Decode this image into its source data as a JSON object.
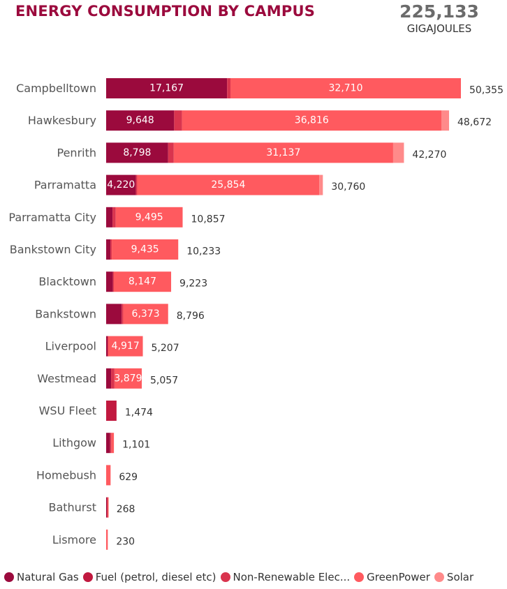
{
  "header": {
    "title": "ENERGY CONSUMPTION BY CAMPUS"
  },
  "kpi": {
    "value": "225,133",
    "label": "GIGAJOULES"
  },
  "chart_data": {
    "type": "bar",
    "orientation": "horizontal",
    "stacked": true,
    "categories": [
      "Campbelltown",
      "Hawkesbury",
      "Penrith",
      "Parramatta",
      "Parramatta City",
      "Bankstown City",
      "Blacktown",
      "Bankstown",
      "Liverpool",
      "Westmead",
      "WSU Fleet",
      "Lithgow",
      "Homebush",
      "Bathurst",
      "Lismore"
    ],
    "series": [
      {
        "name": "Natural Gas",
        "color": "#9b0a3d",
        "values": [
          17167,
          9648,
          8798,
          4220,
          900,
          600,
          950,
          2200,
          200,
          700,
          0,
          560,
          0,
          120,
          0
        ],
        "labels": [
          "17,167",
          "9,648",
          "8,798",
          "4,220",
          "",
          "",
          "",
          "",
          "",
          "",
          "",
          "",
          "",
          "",
          ""
        ]
      },
      {
        "name": "Fuel (petrol, diesel etc)",
        "color": "#c1193f",
        "values": [
          0,
          0,
          0,
          0,
          0,
          0,
          0,
          0,
          0,
          0,
          1474,
          0,
          0,
          0,
          0
        ],
        "labels": [
          "",
          "",
          "",
          "",
          "",
          "",
          "",
          "",
          "",
          "",
          "",
          "",
          "",
          "",
          ""
        ]
      },
      {
        "name": "Non-Renewable Elec...",
        "color": "#d9344e",
        "values": [
          478,
          1116,
          800,
          186,
          462,
          198,
          126,
          223,
          90,
          478,
          0,
          170,
          0,
          80,
          0
        ],
        "labels": [
          "",
          "",
          "",
          "",
          "",
          "",
          "",
          "",
          "",
          "",
          "",
          "",
          "",
          "",
          ""
        ]
      },
      {
        "name": "GreenPower",
        "color": "#ff5a5f",
        "values": [
          32710,
          36816,
          31137,
          25854,
          9495,
          9435,
          8147,
          6373,
          4917,
          3879,
          0,
          371,
          629,
          68,
          230
        ],
        "labels": [
          "32,710",
          "36,816",
          "31,137",
          "25,854",
          "9,495",
          "9,435",
          "8,147",
          "6,373",
          "4,917",
          "3,879",
          "",
          "",
          "",
          "",
          ""
        ]
      },
      {
        "name": "Solar",
        "color": "#ff8a8a",
        "values": [
          0,
          1092,
          1535,
          500,
          0,
          0,
          0,
          0,
          0,
          0,
          0,
          0,
          0,
          0,
          0
        ],
        "labels": [
          "",
          "",
          "",
          "",
          "",
          "",
          "",
          "",
          "",
          "",
          "",
          "",
          "",
          "",
          ""
        ]
      }
    ],
    "totals": [
      50355,
      48672,
      42270,
      30760,
      10857,
      10233,
      9223,
      8796,
      5207,
      5057,
      1474,
      1101,
      629,
      268,
      230
    ],
    "total_labels": [
      "50,355",
      "48,672",
      "42,270",
      "30,760",
      "10,857",
      "10,233",
      "9,223",
      "8,796",
      "5,207",
      "5,057",
      "1,474",
      "1,101",
      "629",
      "268",
      "230"
    ],
    "xlim": [
      0,
      50355
    ],
    "legend_position": "bottom",
    "grid": false
  },
  "legend": {
    "items": [
      {
        "label": "Natural Gas",
        "color": "#9b0a3d"
      },
      {
        "label": "Fuel (petrol, diesel etc)",
        "color": "#c1193f"
      },
      {
        "label": "Non-Renewable Elec...",
        "color": "#d9344e"
      },
      {
        "label": "GreenPower",
        "color": "#ff5a5f"
      },
      {
        "label": "Solar",
        "color": "#ff8a8a"
      }
    ]
  }
}
